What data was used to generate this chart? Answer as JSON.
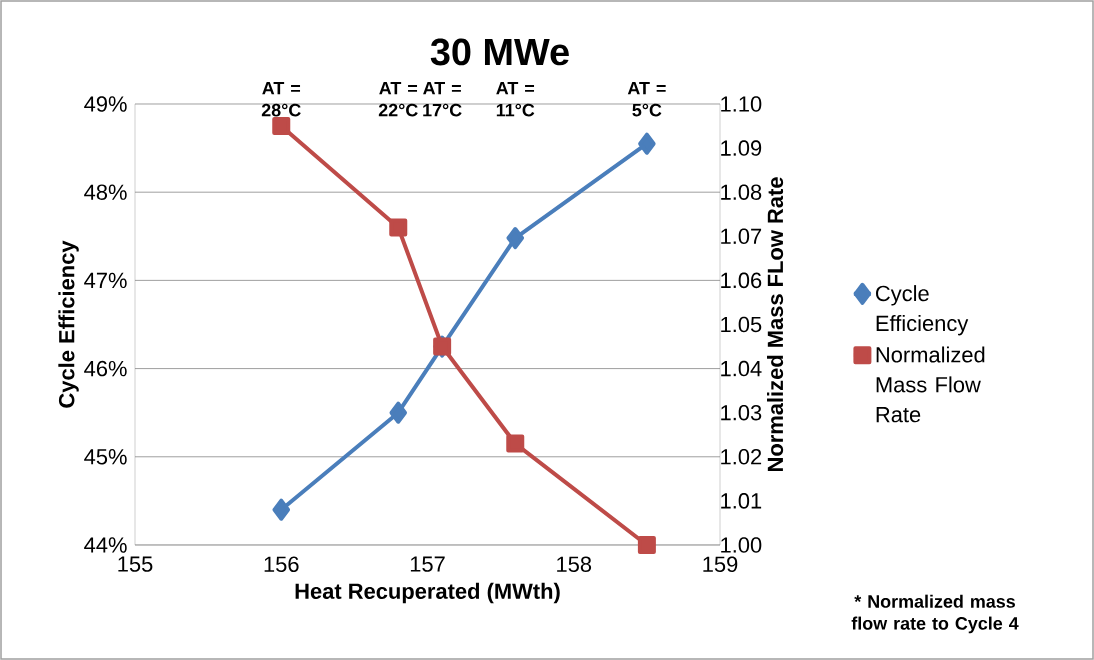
{
  "chart_data": {
    "type": "line",
    "title": "30 MWe",
    "xlabel": "Heat Recuperated (MWth)",
    "ylabel": "Cycle Efficiency",
    "y2label": "Normalized Mass FLow Rate",
    "x": [
      156.0,
      156.8,
      157.1,
      157.6,
      158.5
    ],
    "series": [
      {
        "name": "Cycle Efficiency",
        "color": "#4a7ebb",
        "marker": "diamond",
        "values": [
          44.4,
          45.5,
          46.25,
          47.48,
          48.55
        ]
      },
      {
        "name": "Normalized Mass Flow Rate",
        "color": "#be4b48",
        "marker": "square",
        "axis": "y2",
        "values": [
          1.095,
          1.072,
          1.045,
          1.023,
          1.0
        ]
      }
    ],
    "xlim": [
      155,
      159
    ],
    "xticks": [
      155,
      156,
      157,
      158,
      159
    ],
    "ylim": [
      44,
      49
    ],
    "yticks": [
      {
        "value": 44,
        "label": "44%"
      },
      {
        "value": 45,
        "label": "45%"
      },
      {
        "value": 46,
        "label": "46%"
      },
      {
        "value": 47,
        "label": "47%"
      },
      {
        "value": 48,
        "label": "48%"
      },
      {
        "value": 49,
        "label": "49%"
      }
    ],
    "y2lim": [
      1.0,
      1.1
    ],
    "y2ticks": [
      {
        "value": 1.0,
        "label": "1.00"
      },
      {
        "value": 1.01,
        "label": "1.01"
      },
      {
        "value": 1.02,
        "label": "1.02"
      },
      {
        "value": 1.03,
        "label": "1.03"
      },
      {
        "value": 1.04,
        "label": "1.04"
      },
      {
        "value": 1.05,
        "label": "1.05"
      },
      {
        "value": 1.06,
        "label": "1.06"
      },
      {
        "value": 1.07,
        "label": "1.07"
      },
      {
        "value": 1.08,
        "label": "1.08"
      },
      {
        "value": 1.09,
        "label": "1.09"
      },
      {
        "value": 1.1,
        "label": "1.10"
      }
    ],
    "annotations": [
      "AT = 28°C",
      "AT = 22°C",
      "AT = 17°C",
      "AT = 11°C",
      "AT = 5°C",
      "* Normalized mass flow rate to Cycle 4"
    ],
    "grid": "y",
    "legend": "right",
    "line_style": "solid"
  }
}
